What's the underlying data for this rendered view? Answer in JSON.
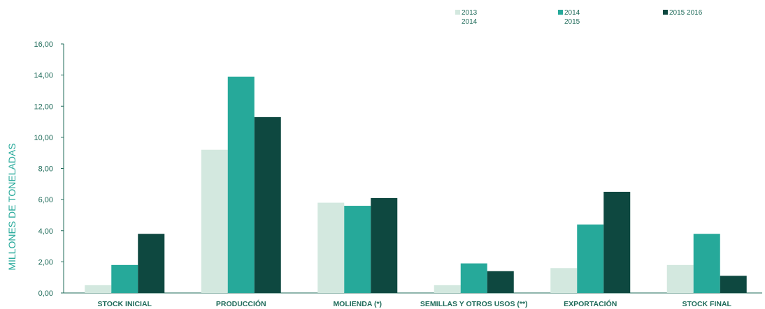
{
  "chart_data": {
    "type": "bar",
    "title": "",
    "xlabel": "",
    "ylabel": "MILLONES DE TONELADAS",
    "ylim": [
      0,
      16
    ],
    "yticks": [
      "0,00",
      "2,00",
      "4,00",
      "6,00",
      "8,00",
      "10,00",
      "12,00",
      "14,00",
      "16,00"
    ],
    "grid": false,
    "legend_position": "top-right",
    "categories": [
      "STOCK INICIAL",
      "PRODUCCIÓN",
      "MOLIENDA (*)",
      "SEMILLAS Y OTROS USOS (**)",
      "EXPORTACIÓN",
      "STOCK FINAL"
    ],
    "series": [
      {
        "name": "2013 2014",
        "legend_lines": [
          "2013",
          "2014"
        ],
        "color": "#d3e8df",
        "values": [
          0.5,
          9.2,
          5.8,
          0.5,
          1.6,
          1.8
        ]
      },
      {
        "name": "2014 2015",
        "legend_lines": [
          "2014",
          "2015"
        ],
        "color": "#26a99a",
        "values": [
          1.8,
          13.9,
          5.6,
          1.9,
          4.4,
          3.8
        ]
      },
      {
        "name": "2015 2016",
        "legend_lines": [
          "2015 2016"
        ],
        "color": "#0e4840",
        "values": [
          3.8,
          11.3,
          6.1,
          1.4,
          6.5,
          1.1
        ]
      }
    ]
  }
}
